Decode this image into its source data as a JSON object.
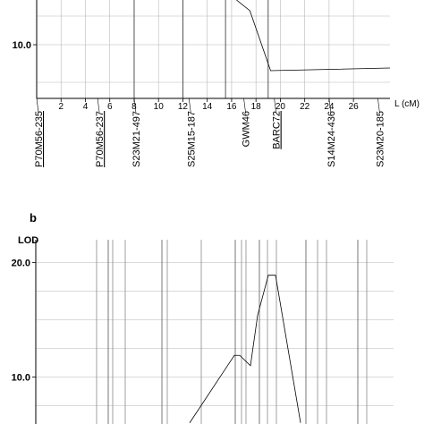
{
  "chart_data": [
    {
      "panel": "",
      "type": "line",
      "x_axis_label": "L (cM)",
      "x_ticks": [
        2,
        4,
        6,
        8,
        10,
        12,
        14,
        16,
        18,
        20,
        22,
        24,
        26
      ],
      "xlim": [
        0,
        29
      ],
      "y_ticks": [
        {
          "value": 10,
          "label": "10.0"
        }
      ],
      "ylim": [
        4,
        15
      ],
      "grid": true,
      "major_lines_x": [
        8,
        12,
        15.5,
        19
      ],
      "series": [
        {
          "x": [
            16.4,
            17.5,
            19.2,
            29
          ],
          "y": [
            15,
            13.8,
            7.1,
            7.4
          ]
        }
      ],
      "markers": [
        {
          "label": "P70M56-235",
          "pos": 0.0,
          "underline": true
        },
        {
          "label": "P70M56-237",
          "pos": 5.0,
          "underline": true
        },
        {
          "label": "S23M21-497",
          "pos": 8.0,
          "underline": false
        },
        {
          "label": "S25M15-187",
          "pos": 12.5,
          "underline": false
        },
        {
          "label": "GWM46",
          "pos": 17.0,
          "underline": false
        },
        {
          "label": "BARC72",
          "pos": 19.5,
          "underline": true
        },
        {
          "label": "S14M24-436",
          "pos": 24.0,
          "underline": false
        },
        {
          "label": "S23M20-185",
          "pos": 28.0,
          "underline": false
        }
      ]
    },
    {
      "panel": "b",
      "type": "line",
      "y_axis_label": "LOD",
      "y_ticks": [
        {
          "value": 10,
          "label": "10.0"
        },
        {
          "value": 20,
          "label": "20.0"
        }
      ],
      "ylim": [
        5.9,
        22
      ],
      "grid": true,
      "vertical_lines_x": [
        108,
        121,
        126,
        140,
        181,
        187,
        225,
        263,
        270,
        275,
        290,
        299,
        309,
        342,
        355,
        365,
        400,
        410
      ],
      "series": [
        {
          "x": [
            212,
            262,
            268,
            280,
            288,
            300,
            308,
            336
          ],
          "y": [
            6.0,
            11.9,
            11.9,
            11.0,
            15.4,
            18.9,
            18.9,
            6.0
          ]
        }
      ]
    }
  ]
}
